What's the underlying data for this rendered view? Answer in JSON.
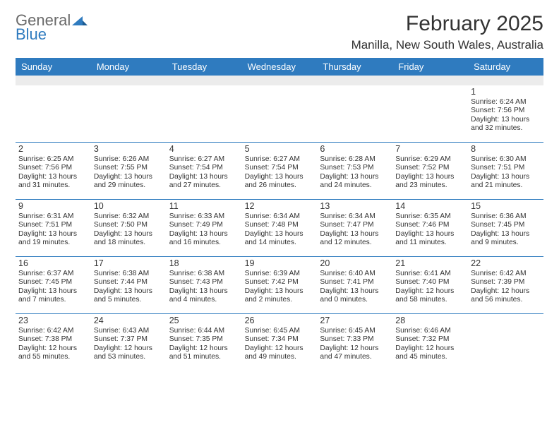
{
  "brand": {
    "top": "General",
    "bottom": "Blue"
  },
  "title": "February 2025",
  "location": "Manilla, New South Wales, Australia",
  "colors": {
    "header_bg": "#2f7bbf",
    "header_text": "#ffffff",
    "blank_band": "#ececec",
    "divider": "#2f7bbf",
    "text": "#333333",
    "brand_grey": "#6a6a6a",
    "brand_blue": "#2f7bbf",
    "page_bg": "#ffffff"
  },
  "day_headers": [
    "Sunday",
    "Monday",
    "Tuesday",
    "Wednesday",
    "Thursday",
    "Friday",
    "Saturday"
  ],
  "weeks": [
    [
      null,
      null,
      null,
      null,
      null,
      null,
      {
        "n": "1",
        "sunrise": "Sunrise: 6:24 AM",
        "sunset": "Sunset: 7:56 PM",
        "dl1": "Daylight: 13 hours",
        "dl2": "and 32 minutes."
      }
    ],
    [
      {
        "n": "2",
        "sunrise": "Sunrise: 6:25 AM",
        "sunset": "Sunset: 7:56 PM",
        "dl1": "Daylight: 13 hours",
        "dl2": "and 31 minutes."
      },
      {
        "n": "3",
        "sunrise": "Sunrise: 6:26 AM",
        "sunset": "Sunset: 7:55 PM",
        "dl1": "Daylight: 13 hours",
        "dl2": "and 29 minutes."
      },
      {
        "n": "4",
        "sunrise": "Sunrise: 6:27 AM",
        "sunset": "Sunset: 7:54 PM",
        "dl1": "Daylight: 13 hours",
        "dl2": "and 27 minutes."
      },
      {
        "n": "5",
        "sunrise": "Sunrise: 6:27 AM",
        "sunset": "Sunset: 7:54 PM",
        "dl1": "Daylight: 13 hours",
        "dl2": "and 26 minutes."
      },
      {
        "n": "6",
        "sunrise": "Sunrise: 6:28 AM",
        "sunset": "Sunset: 7:53 PM",
        "dl1": "Daylight: 13 hours",
        "dl2": "and 24 minutes."
      },
      {
        "n": "7",
        "sunrise": "Sunrise: 6:29 AM",
        "sunset": "Sunset: 7:52 PM",
        "dl1": "Daylight: 13 hours",
        "dl2": "and 23 minutes."
      },
      {
        "n": "8",
        "sunrise": "Sunrise: 6:30 AM",
        "sunset": "Sunset: 7:51 PM",
        "dl1": "Daylight: 13 hours",
        "dl2": "and 21 minutes."
      }
    ],
    [
      {
        "n": "9",
        "sunrise": "Sunrise: 6:31 AM",
        "sunset": "Sunset: 7:51 PM",
        "dl1": "Daylight: 13 hours",
        "dl2": "and 19 minutes."
      },
      {
        "n": "10",
        "sunrise": "Sunrise: 6:32 AM",
        "sunset": "Sunset: 7:50 PM",
        "dl1": "Daylight: 13 hours",
        "dl2": "and 18 minutes."
      },
      {
        "n": "11",
        "sunrise": "Sunrise: 6:33 AM",
        "sunset": "Sunset: 7:49 PM",
        "dl1": "Daylight: 13 hours",
        "dl2": "and 16 minutes."
      },
      {
        "n": "12",
        "sunrise": "Sunrise: 6:34 AM",
        "sunset": "Sunset: 7:48 PM",
        "dl1": "Daylight: 13 hours",
        "dl2": "and 14 minutes."
      },
      {
        "n": "13",
        "sunrise": "Sunrise: 6:34 AM",
        "sunset": "Sunset: 7:47 PM",
        "dl1": "Daylight: 13 hours",
        "dl2": "and 12 minutes."
      },
      {
        "n": "14",
        "sunrise": "Sunrise: 6:35 AM",
        "sunset": "Sunset: 7:46 PM",
        "dl1": "Daylight: 13 hours",
        "dl2": "and 11 minutes."
      },
      {
        "n": "15",
        "sunrise": "Sunrise: 6:36 AM",
        "sunset": "Sunset: 7:45 PM",
        "dl1": "Daylight: 13 hours",
        "dl2": "and 9 minutes."
      }
    ],
    [
      {
        "n": "16",
        "sunrise": "Sunrise: 6:37 AM",
        "sunset": "Sunset: 7:45 PM",
        "dl1": "Daylight: 13 hours",
        "dl2": "and 7 minutes."
      },
      {
        "n": "17",
        "sunrise": "Sunrise: 6:38 AM",
        "sunset": "Sunset: 7:44 PM",
        "dl1": "Daylight: 13 hours",
        "dl2": "and 5 minutes."
      },
      {
        "n": "18",
        "sunrise": "Sunrise: 6:38 AM",
        "sunset": "Sunset: 7:43 PM",
        "dl1": "Daylight: 13 hours",
        "dl2": "and 4 minutes."
      },
      {
        "n": "19",
        "sunrise": "Sunrise: 6:39 AM",
        "sunset": "Sunset: 7:42 PM",
        "dl1": "Daylight: 13 hours",
        "dl2": "and 2 minutes."
      },
      {
        "n": "20",
        "sunrise": "Sunrise: 6:40 AM",
        "sunset": "Sunset: 7:41 PM",
        "dl1": "Daylight: 13 hours",
        "dl2": "and 0 minutes."
      },
      {
        "n": "21",
        "sunrise": "Sunrise: 6:41 AM",
        "sunset": "Sunset: 7:40 PM",
        "dl1": "Daylight: 12 hours",
        "dl2": "and 58 minutes."
      },
      {
        "n": "22",
        "sunrise": "Sunrise: 6:42 AM",
        "sunset": "Sunset: 7:39 PM",
        "dl1": "Daylight: 12 hours",
        "dl2": "and 56 minutes."
      }
    ],
    [
      {
        "n": "23",
        "sunrise": "Sunrise: 6:42 AM",
        "sunset": "Sunset: 7:38 PM",
        "dl1": "Daylight: 12 hours",
        "dl2": "and 55 minutes."
      },
      {
        "n": "24",
        "sunrise": "Sunrise: 6:43 AM",
        "sunset": "Sunset: 7:37 PM",
        "dl1": "Daylight: 12 hours",
        "dl2": "and 53 minutes."
      },
      {
        "n": "25",
        "sunrise": "Sunrise: 6:44 AM",
        "sunset": "Sunset: 7:35 PM",
        "dl1": "Daylight: 12 hours",
        "dl2": "and 51 minutes."
      },
      {
        "n": "26",
        "sunrise": "Sunrise: 6:45 AM",
        "sunset": "Sunset: 7:34 PM",
        "dl1": "Daylight: 12 hours",
        "dl2": "and 49 minutes."
      },
      {
        "n": "27",
        "sunrise": "Sunrise: 6:45 AM",
        "sunset": "Sunset: 7:33 PM",
        "dl1": "Daylight: 12 hours",
        "dl2": "and 47 minutes."
      },
      {
        "n": "28",
        "sunrise": "Sunrise: 6:46 AM",
        "sunset": "Sunset: 7:32 PM",
        "dl1": "Daylight: 12 hours",
        "dl2": "and 45 minutes."
      },
      null
    ]
  ]
}
